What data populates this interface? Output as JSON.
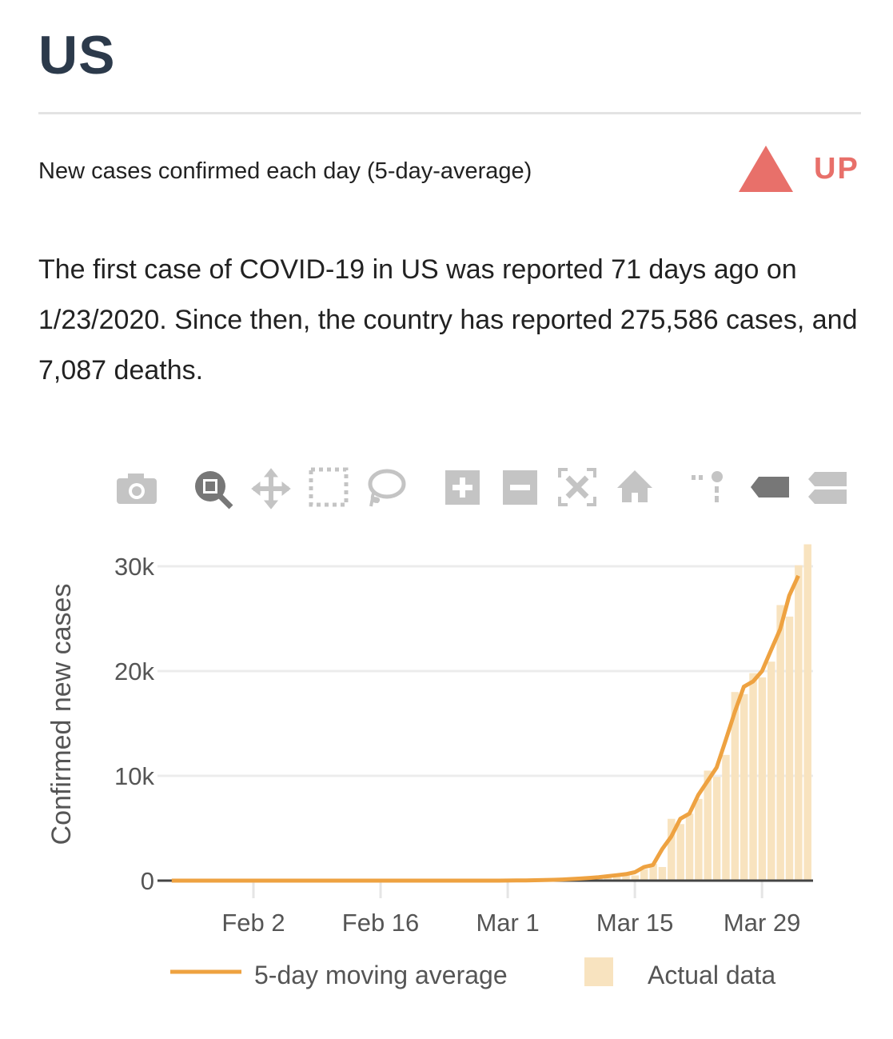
{
  "header": {
    "title": "US"
  },
  "subtitle": "New cases confirmed each day (5-day-average)",
  "trend": {
    "label": "UP",
    "icon": "triangle-up-icon",
    "color": "#e8706a"
  },
  "summary": "The first case of COVID-19 in US was reported 71 days ago on 1/23/2020. Since then, the country has reported 275,586 cases, and 7,087 deaths.",
  "toolbar": [
    "camera-icon",
    "zoom-icon",
    "pan-icon",
    "box-select-icon",
    "lasso-select-icon",
    "zoom-in-icon",
    "zoom-out-icon",
    "autoscale-icon",
    "reset-axes-icon",
    "spike-lines-icon",
    "hover-closest-icon",
    "hover-compare-icon"
  ],
  "chart_data": {
    "type": "bar",
    "ylabel": "Confirmed new cases",
    "xlabel": "",
    "ylim": [
      0,
      30000
    ],
    "y_ticks": [
      {
        "value": 0,
        "label": "0"
      },
      {
        "value": 10000,
        "label": "10k"
      },
      {
        "value": 20000,
        "label": "20k"
      },
      {
        "value": 30000,
        "label": "30k"
      }
    ],
    "x_ticks": [
      {
        "day": 10,
        "label": "Feb 2"
      },
      {
        "day": 24,
        "label": "Feb 16"
      },
      {
        "day": 38,
        "label": "Mar 1"
      },
      {
        "day": 52,
        "label": "Mar 15"
      },
      {
        "day": 66,
        "label": "Mar 29"
      }
    ],
    "x_start_date": "2020-01-23",
    "grid": true,
    "legend_position": "bottom",
    "series": [
      {
        "name": "5-day moving average",
        "type": "line",
        "color": "#eea241",
        "start_day": 1,
        "values": [
          0,
          0,
          0,
          0,
          0,
          0,
          0,
          0,
          0,
          0,
          0,
          0,
          0,
          0,
          0,
          0,
          0,
          0,
          0,
          0,
          0,
          0,
          0,
          0,
          0,
          0,
          0,
          0,
          0,
          0,
          0,
          0,
          0,
          0,
          0,
          0,
          0,
          10,
          15,
          25,
          40,
          60,
          80,
          110,
          150,
          200,
          260,
          330,
          420,
          520,
          620,
          800,
          1300,
          1500,
          3000,
          4200,
          5900,
          6400,
          8200,
          9500,
          10800,
          13400,
          16100,
          18500,
          19000,
          20000,
          22000,
          24000,
          27200,
          29100
        ]
      },
      {
        "name": "Actual data",
        "type": "bar",
        "color": "#f8e3bf",
        "start_day": 0,
        "values": [
          1,
          0,
          1,
          0,
          0,
          0,
          0,
          0,
          0,
          1,
          0,
          1,
          0,
          0,
          0,
          0,
          0,
          0,
          0,
          0,
          0,
          0,
          0,
          0,
          0,
          0,
          0,
          0,
          0,
          0,
          0,
          0,
          0,
          0,
          0,
          0,
          0,
          0,
          10,
          20,
          30,
          40,
          60,
          80,
          120,
          160,
          220,
          280,
          350,
          450,
          550,
          700,
          500,
          1100,
          1600,
          1300,
          5900,
          5400,
          6400,
          7800,
          10500,
          9900,
          12000,
          18000,
          17800,
          19800,
          19400,
          20900,
          26300,
          25200,
          30100,
          32100
        ]
      }
    ]
  }
}
